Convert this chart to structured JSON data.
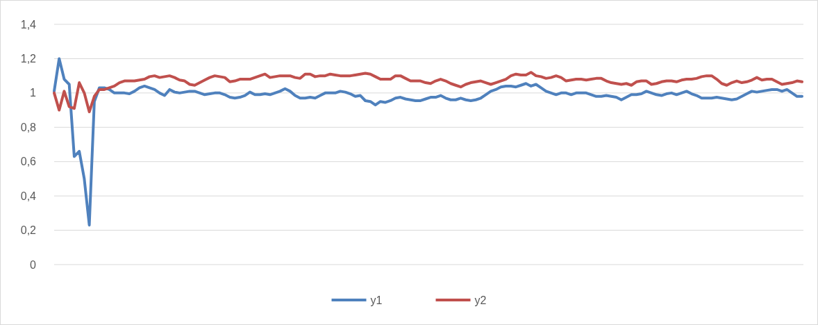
{
  "chart_data": {
    "type": "line",
    "categories": [
      null,
      null,
      null,
      null,
      null,
      null,
      null,
      null,
      null,
      null,
      null,
      null,
      null,
      null,
      null,
      null,
      null,
      null,
      null,
      null,
      null,
      null,
      null,
      null,
      null,
      null,
      null,
      null,
      null,
      null,
      null,
      null,
      null,
      null,
      null,
      null,
      null,
      null,
      null,
      null,
      null,
      null,
      null,
      null,
      null,
      null,
      null,
      null,
      null,
      null,
      null,
      null,
      null,
      null,
      null,
      null,
      null,
      null,
      null,
      null,
      null,
      null,
      null,
      null,
      null,
      null,
      null,
      null,
      null,
      null,
      null,
      null,
      null,
      null,
      null,
      null,
      null,
      null,
      null,
      null,
      null,
      null,
      null,
      null,
      null,
      null,
      null,
      null,
      null,
      null,
      null,
      null,
      null,
      null,
      null,
      null,
      null,
      null,
      null,
      null,
      null,
      null,
      null,
      null,
      null,
      null,
      null,
      null,
      null,
      null,
      null,
      null,
      null,
      null,
      null,
      null,
      null,
      null,
      null,
      null,
      null,
      null,
      null,
      null,
      null,
      null,
      null,
      null,
      null,
      null,
      null,
      null,
      null,
      null,
      null,
      null,
      null,
      null,
      null,
      null,
      null,
      null,
      null,
      null,
      null,
      null,
      null,
      null,
      null,
      null
    ],
    "series": [
      {
        "name": "y1",
        "color": "#4f81bd",
        "values": [
          1.01,
          1.2,
          1.08,
          1.05,
          0.63,
          0.66,
          0.5,
          0.23,
          0.95,
          1.03,
          1.03,
          1.02,
          1.0,
          1.0,
          1.0,
          0.995,
          1.01,
          1.03,
          1.04,
          1.03,
          1.02,
          1.0,
          0.985,
          1.02,
          1.005,
          1.0,
          1.005,
          1.01,
          1.01,
          1.0,
          0.99,
          0.995,
          1.0,
          1.0,
          0.99,
          0.975,
          0.97,
          0.975,
          0.985,
          1.005,
          0.99,
          0.99,
          0.995,
          0.99,
          1.0,
          1.01,
          1.025,
          1.01,
          0.985,
          0.97,
          0.97,
          0.975,
          0.97,
          0.985,
          1.0,
          1.0,
          1.0,
          1.01,
          1.005,
          0.995,
          0.98,
          0.985,
          0.955,
          0.95,
          0.93,
          0.95,
          0.945,
          0.955,
          0.97,
          0.975,
          0.965,
          0.96,
          0.955,
          0.955,
          0.965,
          0.975,
          0.975,
          0.985,
          0.97,
          0.96,
          0.96,
          0.97,
          0.96,
          0.955,
          0.96,
          0.97,
          0.99,
          1.01,
          1.02,
          1.035,
          1.04,
          1.04,
          1.035,
          1.045,
          1.055,
          1.04,
          1.05,
          1.03,
          1.01,
          1.0,
          0.99,
          1.0,
          1.0,
          0.99,
          1.0,
          1.0,
          1.0,
          0.99,
          0.98,
          0.98,
          0.985,
          0.98,
          0.975,
          0.96,
          0.975,
          0.99,
          0.99,
          0.995,
          1.01,
          1.0,
          0.99,
          0.985,
          0.995,
          1.0,
          0.99,
          1.0,
          1.01,
          0.995,
          0.985,
          0.97,
          0.97,
          0.97,
          0.975,
          0.97,
          0.965,
          0.96,
          0.965,
          0.98,
          0.995,
          1.01,
          1.005,
          1.01,
          1.015,
          1.02,
          1.02,
          1.01,
          1.02,
          1.0,
          0.98,
          0.98
        ]
      },
      {
        "name": "y2",
        "color": "#c0504d",
        "values": [
          1.0,
          0.9,
          1.01,
          0.92,
          0.91,
          1.06,
          1.0,
          0.89,
          0.98,
          1.02,
          1.02,
          1.03,
          1.04,
          1.06,
          1.07,
          1.07,
          1.07,
          1.075,
          1.08,
          1.095,
          1.1,
          1.09,
          1.095,
          1.1,
          1.09,
          1.075,
          1.07,
          1.05,
          1.045,
          1.06,
          1.075,
          1.09,
          1.1,
          1.095,
          1.09,
          1.065,
          1.07,
          1.08,
          1.08,
          1.08,
          1.09,
          1.1,
          1.11,
          1.09,
          1.095,
          1.1,
          1.1,
          1.1,
          1.09,
          1.085,
          1.11,
          1.11,
          1.095,
          1.1,
          1.1,
          1.11,
          1.105,
          1.1,
          1.1,
          1.1,
          1.105,
          1.11,
          1.115,
          1.11,
          1.095,
          1.08,
          1.08,
          1.08,
          1.1,
          1.1,
          1.085,
          1.07,
          1.07,
          1.07,
          1.06,
          1.055,
          1.07,
          1.08,
          1.07,
          1.055,
          1.045,
          1.035,
          1.05,
          1.06,
          1.065,
          1.07,
          1.06,
          1.05,
          1.06,
          1.07,
          1.08,
          1.1,
          1.11,
          1.105,
          1.105,
          1.12,
          1.1,
          1.095,
          1.085,
          1.09,
          1.1,
          1.09,
          1.07,
          1.075,
          1.08,
          1.08,
          1.075,
          1.08,
          1.085,
          1.085,
          1.07,
          1.06,
          1.055,
          1.05,
          1.055,
          1.045,
          1.065,
          1.07,
          1.07,
          1.05,
          1.055,
          1.065,
          1.07,
          1.07,
          1.065,
          1.075,
          1.08,
          1.08,
          1.085,
          1.095,
          1.1,
          1.1,
          1.08,
          1.055,
          1.045,
          1.06,
          1.07,
          1.06,
          1.065,
          1.075,
          1.09,
          1.075,
          1.08,
          1.08,
          1.065,
          1.05,
          1.055,
          1.06,
          1.07,
          1.065
        ]
      }
    ],
    "ylim": [
      0,
      1.4
    ],
    "yticks": [
      0,
      {
        "value": 0.2,
        "label": "0,2"
      },
      {
        "value": 0.4,
        "label": "0,4"
      },
      {
        "value": 0.6,
        "label": "0,6"
      },
      {
        "value": 0.8,
        "label": "0,8"
      },
      1,
      {
        "value": 1.2,
        "label": "1,2"
      },
      {
        "value": 1.4,
        "label": "1,4"
      }
    ],
    "tick_labels": "y",
    "grid": "y",
    "legend": "bottom",
    "marker": "none",
    "line_style": "solid"
  }
}
